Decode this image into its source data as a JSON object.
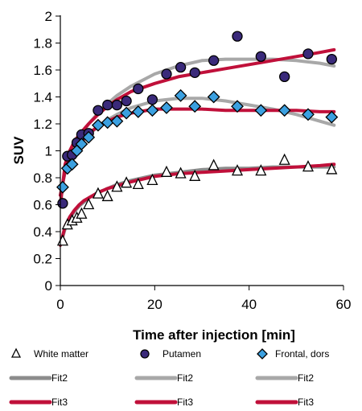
{
  "chart_data": {
    "type": "scatter",
    "title": "",
    "xlabel": "Time after injection [min]",
    "ylabel": "SUV",
    "xlim": [
      0,
      60
    ],
    "ylim": [
      0,
      2
    ],
    "x_ticks": [
      "0",
      "20",
      "40",
      "60"
    ],
    "y_ticks": [
      "0",
      "0.2",
      "0.4",
      "0.6",
      "0.8",
      "1",
      "1.2",
      "1.4",
      "1.6",
      "1.8",
      "2"
    ],
    "grid": false,
    "legend_position": "bottom",
    "series": [
      {
        "name": "White matter",
        "marker": "triangle",
        "color": "#ffffff",
        "edge": "#000000",
        "x": [
          0.5,
          1.5,
          2.5,
          3.5,
          4.5,
          6,
          8,
          10,
          12,
          14,
          16.5,
          19.5,
          22.5,
          25.5,
          28.5,
          32.5,
          37.5,
          42.5,
          47.5,
          52.5,
          57.5
        ],
        "y": [
          0.33,
          0.45,
          0.48,
          0.5,
          0.53,
          0.6,
          0.68,
          0.66,
          0.73,
          0.76,
          0.75,
          0.78,
          0.84,
          0.83,
          0.81,
          0.89,
          0.85,
          0.85,
          0.93,
          0.88,
          0.86
        ]
      },
      {
        "name": "Putamen",
        "marker": "circle",
        "color": "#3a2a7a",
        "edge": "#000000",
        "x": [
          0.5,
          1.5,
          2.5,
          3.5,
          4.5,
          6,
          8,
          10,
          12,
          14,
          16.5,
          19.5,
          22.5,
          25.5,
          28.5,
          32.5,
          37.5,
          42.5,
          47.5,
          52.5,
          57.5
        ],
        "y": [
          0.61,
          0.96,
          0.97,
          1.06,
          1.12,
          1.13,
          1.3,
          1.34,
          1.34,
          1.37,
          1.46,
          1.38,
          1.57,
          1.62,
          1.58,
          1.67,
          1.85,
          1.7,
          1.55,
          1.72,
          1.68
        ]
      },
      {
        "name": "Frontal, dors",
        "marker": "diamond",
        "color": "#3ba0e0",
        "edge": "#000000",
        "x": [
          0.5,
          1.5,
          2.5,
          3.5,
          4.5,
          6,
          8,
          10,
          12,
          14,
          16.5,
          19.5,
          22.5,
          25.5,
          28.5,
          32.5,
          37.5,
          42.5,
          47.5,
          52.5,
          57.5
        ],
        "y": [
          0.73,
          0.87,
          0.9,
          1.0,
          1.05,
          1.1,
          1.19,
          1.21,
          1.22,
          1.28,
          1.29,
          1.3,
          1.32,
          1.41,
          1.33,
          1.4,
          1.33,
          1.3,
          1.3,
          1.27,
          1.25
        ]
      }
    ],
    "fits": [
      {
        "name": "Fit2",
        "color": "#8c8c8c",
        "x": [
          0,
          1,
          2,
          3,
          4,
          5,
          6,
          8,
          10,
          12,
          15,
          20,
          25,
          30,
          35,
          40,
          45,
          50,
          55,
          58
        ],
        "y": [
          0.3,
          0.42,
          0.5,
          0.55,
          0.59,
          0.62,
          0.65,
          0.69,
          0.72,
          0.75,
          0.78,
          0.82,
          0.84,
          0.86,
          0.87,
          0.87,
          0.88,
          0.88,
          0.88,
          0.88
        ]
      },
      {
        "name": "Fit3",
        "color": "#c0103a",
        "x": [
          0,
          1,
          2,
          3,
          4,
          5,
          6,
          8,
          10,
          12,
          15,
          20,
          25,
          30,
          35,
          40,
          45,
          50,
          55,
          58
        ],
        "y": [
          0.3,
          0.44,
          0.51,
          0.56,
          0.6,
          0.63,
          0.65,
          0.69,
          0.72,
          0.74,
          0.77,
          0.81,
          0.83,
          0.84,
          0.85,
          0.86,
          0.87,
          0.88,
          0.89,
          0.9
        ]
      },
      {
        "name": "Fit2",
        "color": "#a8a8a8",
        "x": [
          0,
          1,
          2,
          3,
          4,
          5,
          6,
          8,
          10,
          12,
          15,
          20,
          25,
          30,
          35,
          40,
          45,
          50,
          55,
          58
        ],
        "y": [
          0.6,
          0.88,
          0.98,
          1.05,
          1.1,
          1.15,
          1.2,
          1.28,
          1.35,
          1.41,
          1.48,
          1.57,
          1.63,
          1.67,
          1.68,
          1.68,
          1.68,
          1.67,
          1.65,
          1.63
        ]
      },
      {
        "name": "Fit3",
        "color": "#c0103a",
        "x": [
          0,
          1,
          2,
          3,
          4,
          5,
          6,
          8,
          10,
          12,
          15,
          20,
          25,
          30,
          35,
          40,
          45,
          50,
          55,
          58
        ],
        "y": [
          0.6,
          0.9,
          1.0,
          1.07,
          1.12,
          1.16,
          1.2,
          1.27,
          1.33,
          1.38,
          1.44,
          1.5,
          1.55,
          1.58,
          1.61,
          1.64,
          1.67,
          1.7,
          1.73,
          1.75
        ]
      },
      {
        "name": "Fit2",
        "color": "#a8a8a8",
        "x": [
          0,
          1,
          2,
          3,
          4,
          5,
          6,
          8,
          10,
          12,
          15,
          20,
          25,
          30,
          35,
          40,
          45,
          50,
          55,
          58
        ],
        "y": [
          0.67,
          0.84,
          0.93,
          0.99,
          1.04,
          1.08,
          1.12,
          1.18,
          1.23,
          1.27,
          1.32,
          1.37,
          1.39,
          1.39,
          1.37,
          1.34,
          1.31,
          1.27,
          1.22,
          1.19
        ]
      },
      {
        "name": "Fit3",
        "color": "#c0103a",
        "x": [
          0,
          1,
          2,
          3,
          4,
          5,
          6,
          8,
          10,
          12,
          15,
          20,
          25,
          30,
          35,
          40,
          45,
          50,
          55,
          58
        ],
        "y": [
          0.67,
          0.85,
          0.94,
          1.0,
          1.05,
          1.09,
          1.13,
          1.18,
          1.22,
          1.25,
          1.28,
          1.31,
          1.31,
          1.31,
          1.3,
          1.3,
          1.3,
          1.3,
          1.29,
          1.29
        ]
      }
    ],
    "legend": {
      "markers": [
        "White matter",
        "Putamen",
        "Frontal, dors"
      ],
      "line_rows": [
        [
          {
            "label": "Fit2",
            "color": "#8c8c8c"
          },
          {
            "label": "Fit2",
            "color": "#a8a8a8"
          },
          {
            "label": "Fit2",
            "color": "#a8a8a8"
          }
        ],
        [
          {
            "label": "Fit3",
            "color": "#c0103a"
          },
          {
            "label": "Fit3",
            "color": "#c0103a"
          },
          {
            "label": "Fit3",
            "color": "#c0103a"
          }
        ]
      ]
    }
  }
}
